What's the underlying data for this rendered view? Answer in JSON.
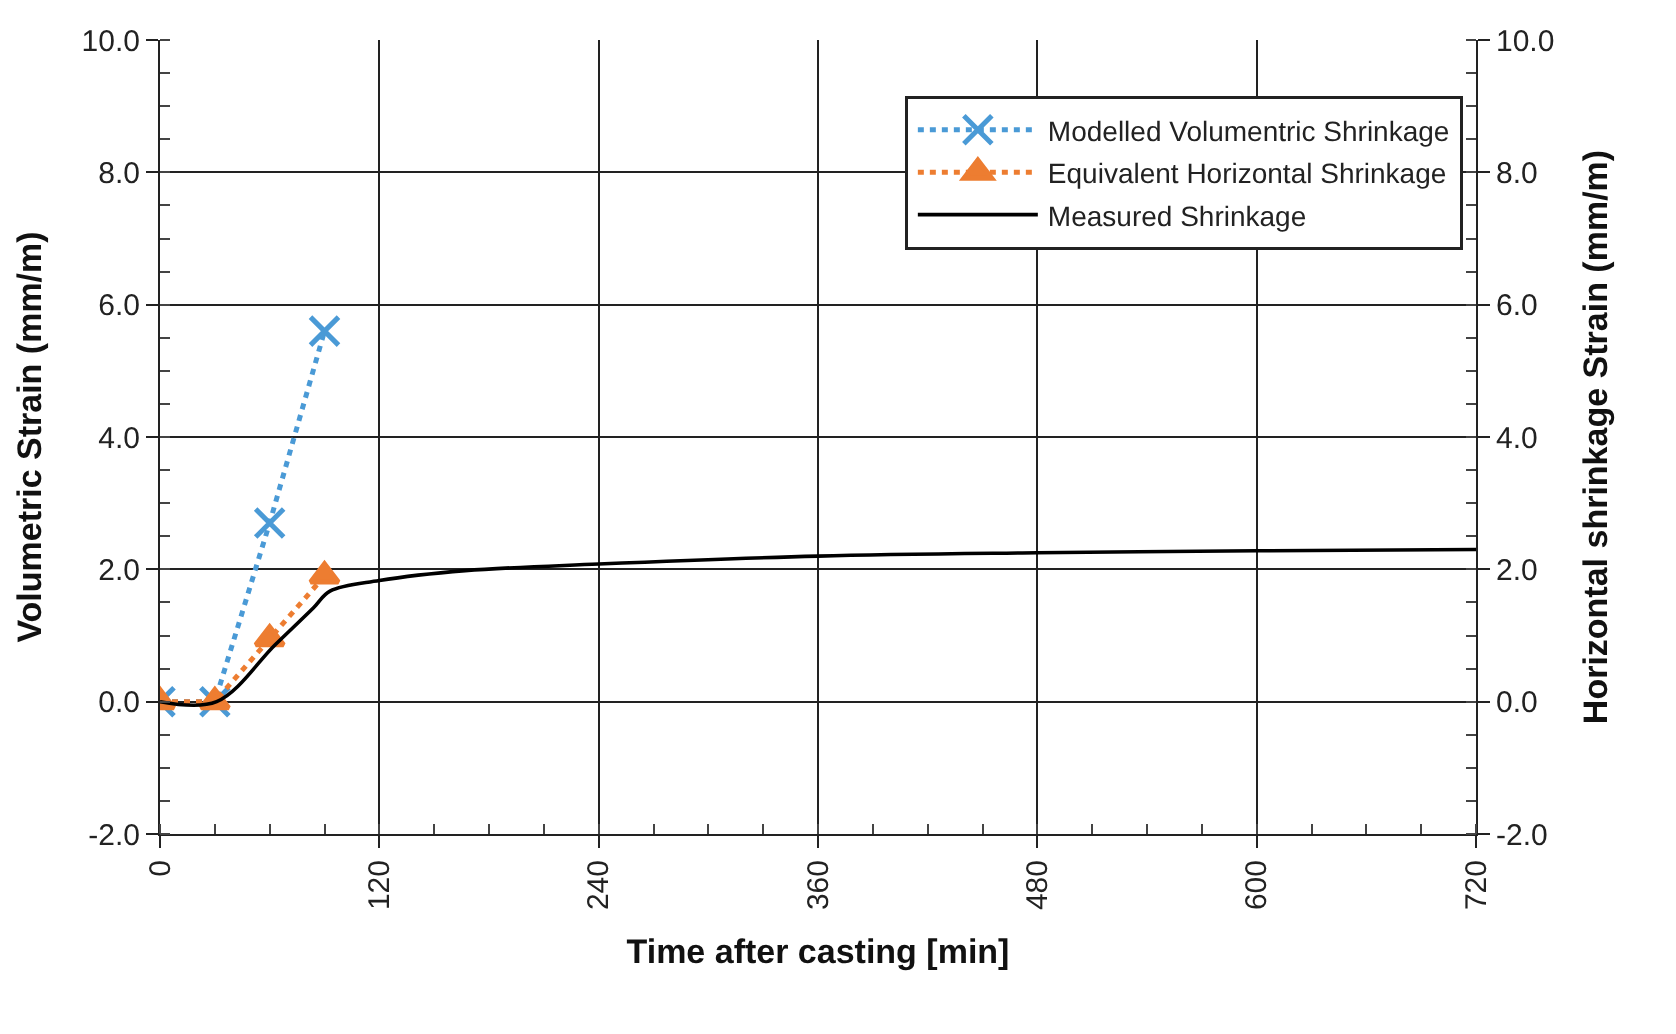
{
  "chart_data": {
    "type": "line",
    "xlabel": "Time after casting [min]",
    "ylabel": "Volumetric Strain (mm/m)",
    "y2label": "Horizontal shrinkage Strain (mm/m)",
    "series": [
      {
        "name": "Modelled Volumentric Shrinkage",
        "color": "#4a9ad6",
        "x": [
          0,
          30,
          60,
          90
        ],
        "values": [
          0,
          0,
          2.7,
          5.6
        ],
        "marker": "cross",
        "line_style": "dotted"
      },
      {
        "name": "Equivalent Horizontal Shrinkage",
        "color": "#ed7d31",
        "x": [
          0,
          30,
          60,
          90
        ],
        "values": [
          0,
          0,
          0.95,
          1.9
        ],
        "marker": "triangle",
        "line_style": "dotted"
      },
      {
        "name": "Measured Shrinkage",
        "color": "#000000",
        "x": [
          0,
          31,
          63,
          84,
          93,
          120,
          167,
          240,
          360,
          480,
          600,
          720
        ],
        "values": [
          0,
          0,
          0.86,
          1.42,
          1.67,
          1.83,
          1.98,
          2.08,
          2.2,
          2.25,
          2.28,
          2.3
        ],
        "marker": "none",
        "line_style": "solid"
      }
    ],
    "xlim": [
      0,
      720
    ],
    "xticks": [
      0,
      120,
      240,
      360,
      480,
      600,
      720
    ],
    "ylim": [
      -2,
      10
    ],
    "yticks": [
      {
        "value": -2,
        "label": "-2.0"
      },
      {
        "value": 0,
        "label": "0.0"
      },
      {
        "value": 2,
        "label": "2.0"
      },
      {
        "value": 4,
        "label": "4.0"
      },
      {
        "value": 6,
        "label": "6.0"
      },
      {
        "value": 8,
        "label": "8.0"
      },
      {
        "value": 10,
        "label": "10.0"
      }
    ],
    "y2lim": [
      -2,
      10
    ],
    "y2ticks": [
      {
        "value": -2,
        "label": "-2.0"
      },
      {
        "value": 0,
        "label": "0.0"
      },
      {
        "value": 2,
        "label": "2.0"
      },
      {
        "value": 4,
        "label": "4.0"
      },
      {
        "value": 6,
        "label": "6.0"
      },
      {
        "value": 8,
        "label": "8.0"
      },
      {
        "value": 10,
        "label": "10.0"
      }
    ],
    "grid": true,
    "legend": "top right"
  }
}
